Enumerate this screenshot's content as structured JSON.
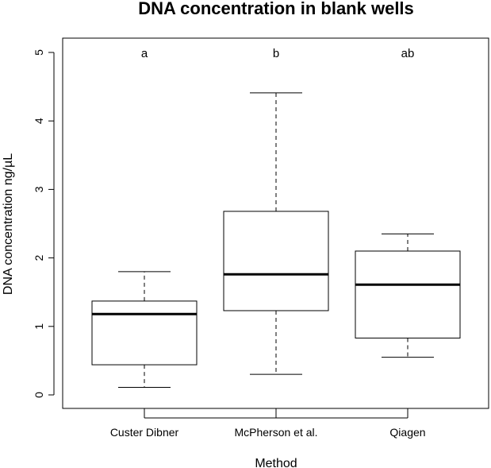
{
  "chart_data": {
    "type": "boxplot",
    "title": "DNA concentration in blank wells",
    "xlabel": "Method",
    "ylabel": "DNA concentration ng/µL",
    "ylim": [
      0,
      5
    ],
    "yticks": [
      "0",
      "1",
      "2",
      "3",
      "4",
      "5"
    ],
    "grid": false,
    "categories": [
      "Custer Dibner",
      "McPherson et al.",
      "Qiagen"
    ],
    "group_letters": [
      "a",
      "b",
      "ab"
    ],
    "boxes": [
      {
        "category": "Custer Dibner",
        "min": 0.11,
        "q1": 0.44,
        "median": 1.18,
        "q3": 1.37,
        "max": 1.8
      },
      {
        "category": "McPherson et al.",
        "min": 0.3,
        "q1": 1.23,
        "median": 1.76,
        "q3": 2.68,
        "max": 4.41
      },
      {
        "category": "Qiagen",
        "min": 0.55,
        "q1": 0.83,
        "median": 1.61,
        "q3": 2.1,
        "max": 2.35
      }
    ]
  }
}
